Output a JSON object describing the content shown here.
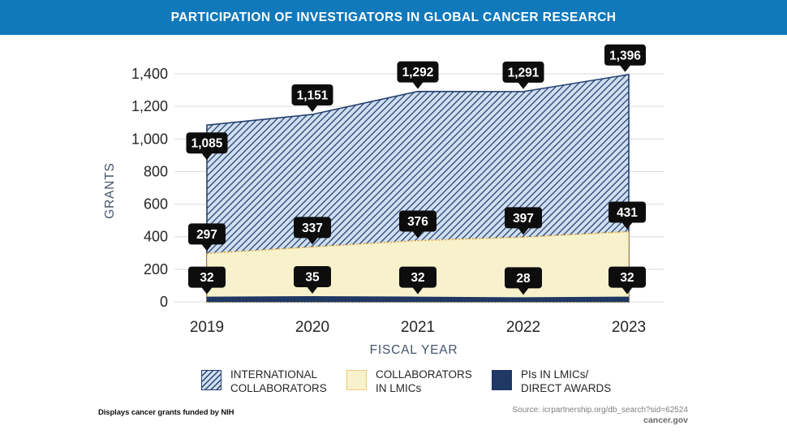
{
  "header": {
    "title": "PARTICIPATION OF INVESTIGATORS IN GLOBAL CANCER RESEARCH",
    "bar_color": "#1079BC"
  },
  "chart_data": {
    "type": "area",
    "title": "PARTICIPATION OF INVESTIGATORS IN GLOBAL CANCER RESEARCH",
    "categories": [
      "2019",
      "2020",
      "2021",
      "2022",
      "2023"
    ],
    "series": [
      {
        "name": "INTERNATIONAL COLLABORATORS",
        "style": "hatched",
        "fill": "#CFDEF1",
        "line_color": "#24426E",
        "values": [
          1085,
          1151,
          1292,
          1291,
          1396
        ]
      },
      {
        "name": "COLLABORATORS IN LMICs",
        "style": "dotted",
        "fill": "#F8F2CC",
        "line_color": "#E5A32E",
        "values": [
          297,
          337,
          376,
          397,
          431
        ]
      },
      {
        "name": "PIs IN LMICs/DIRECT AWARDS",
        "style": "solid",
        "fill": "#1F3864",
        "values": [
          32,
          35,
          32,
          28,
          32
        ]
      }
    ],
    "xlabel": "FISCAL YEAR",
    "ylabel": "GRANTS",
    "ylim": [
      0,
      1400
    ],
    "ytick_step": 200,
    "grid": true,
    "legend_position": "bottom",
    "data_label_box_color": "#0D0D0D",
    "data_label_text_color": "#FFFFFF",
    "grid_color": "#D9D9D9"
  },
  "legend": {
    "items": [
      {
        "lines": [
          "INTERNATIONAL",
          "COLLABORATORS"
        ],
        "swatch": "hatched-blue"
      },
      {
        "lines": [
          "COLLABORATORS",
          "IN LMICs"
        ],
        "swatch": "dotted-yellow"
      },
      {
        "lines": [
          "PIs IN LMICs/",
          "DIRECT AWARDS"
        ],
        "swatch": "solid-navy"
      }
    ]
  },
  "footer": {
    "note": "Displays cancer grants funded by NIH",
    "source": "Source: icrpartnership.org/db_search?sid=62524",
    "site": "cancer.gov"
  }
}
